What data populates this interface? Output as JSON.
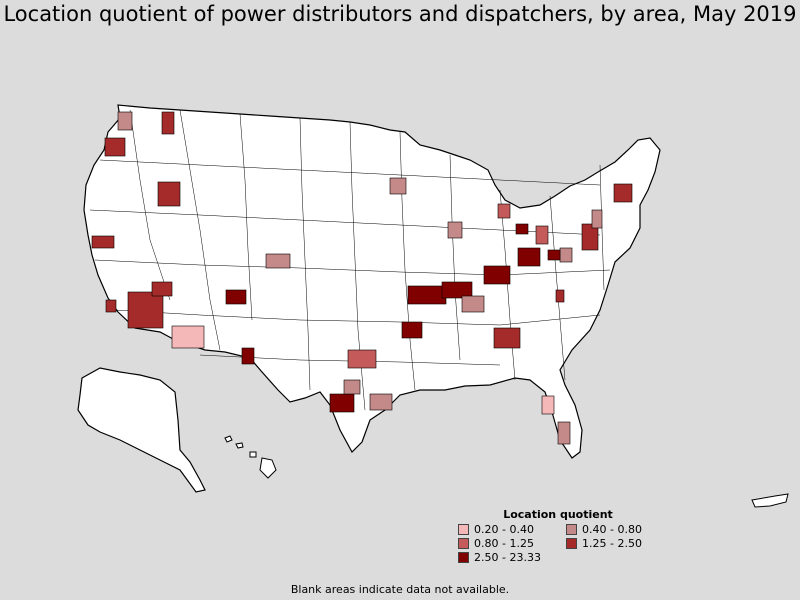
{
  "title": "Location quotient of power distributors and dispatchers, by area, May 2019",
  "legend": {
    "title": "Location quotient",
    "items": [
      {
        "label": "0.20 - 0.40",
        "color": "#f4b8b8"
      },
      {
        "label": "0.40 - 0.80",
        "color": "#c48a8a"
      },
      {
        "label": "0.80 - 1.25",
        "color": "#c55a5a"
      },
      {
        "label": "1.25 - 2.50",
        "color": "#a52a2a"
      },
      {
        "label": "2.50 - 23.33",
        "color": "#800000"
      }
    ]
  },
  "footnote": "Blank areas indicate data not available.",
  "colors": {
    "background": "#dcdcdc",
    "no_data": "#ffffff",
    "border": "#000000"
  }
}
